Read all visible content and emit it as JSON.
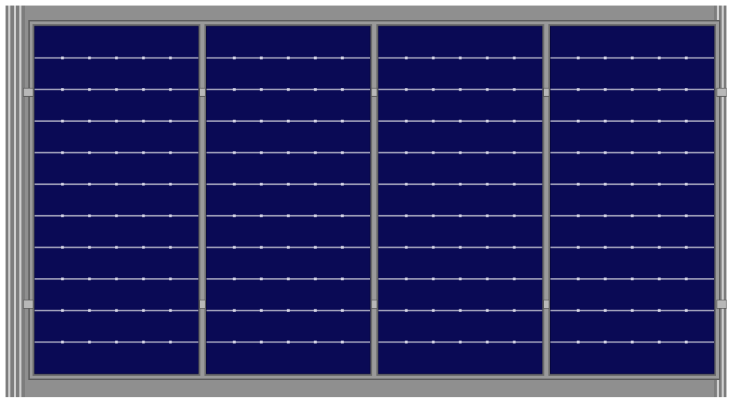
{
  "scene": {
    "subject": "solar-array",
    "panel_count": 4,
    "cell_rows_per_panel": 11,
    "busbar_dots_per_line": 5,
    "colors": {
      "background": "#ffffff",
      "roof_base": "#8f8f8f",
      "roof_rib_light": "#cfcfcf",
      "roof_rib_dark": "#4a4a4a",
      "frame": "#9a9a9a",
      "frame_dark": "#5e5e5e",
      "cell": "#0a0a55",
      "cell_edge": "#06063d",
      "busbar": "#a8a8c0",
      "busbar_dot": "#d6d6e6",
      "clamp": "#b8b8b8"
    }
  }
}
